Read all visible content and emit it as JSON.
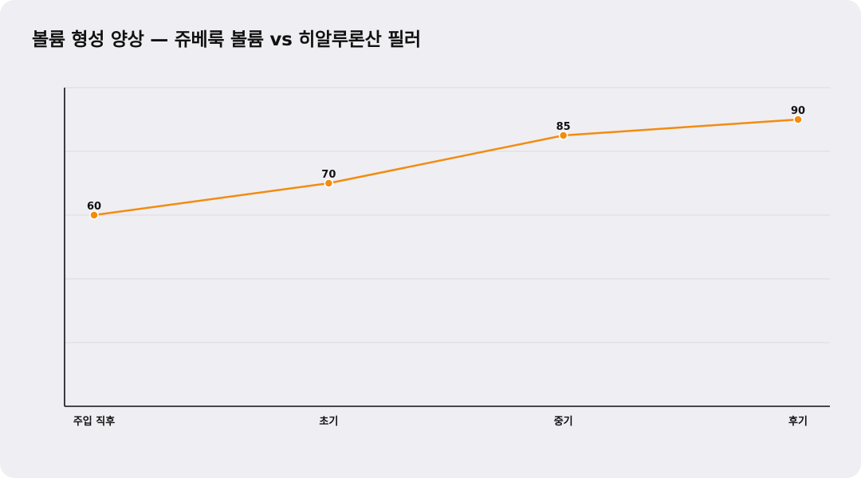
{
  "chart_data": {
    "type": "line",
    "title": "볼륨 형성 양상 — 쥬베룩 볼륨 vs 히알루론산 필러",
    "categories": [
      "주입 직후",
      "초기",
      "중기",
      "후기"
    ],
    "series": [
      {
        "values": [
          60,
          70,
          85,
          90
        ],
        "color": "#f28c0f"
      }
    ],
    "ylim": [
      0,
      100
    ],
    "y_gridlines": [
      20,
      40,
      60,
      80,
      100
    ],
    "grid": true,
    "xlabel": "",
    "ylabel": "",
    "colors": {
      "background": "#efeef3",
      "line": "#f28c0f",
      "axis": "#111111",
      "grid": "#dcdbe1"
    }
  }
}
